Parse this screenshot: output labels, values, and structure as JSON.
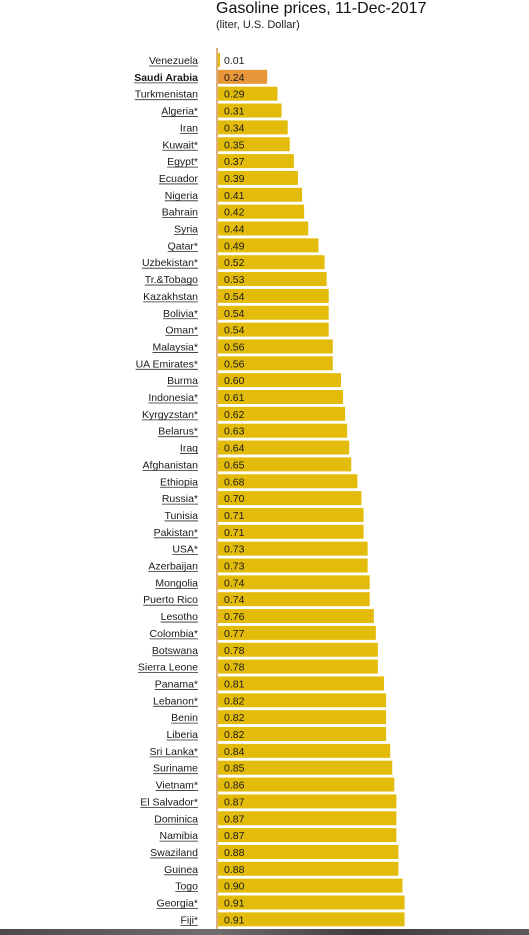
{
  "header": {
    "title": "Gasoline prices, 11-Dec-2017",
    "subtitle": "(liter, U.S. Dollar)"
  },
  "colors": {
    "bar": "#e3bc0b",
    "highlight": "#e8963a",
    "axis": "#c97a2a",
    "underline": "#2b2b2b"
  },
  "chart_data": {
    "type": "bar",
    "orientation": "horizontal",
    "title": "Gasoline prices, 11-Dec-2017",
    "subtitle": "(liter, U.S. Dollar)",
    "highlight": "Saudi Arabia",
    "categories": [
      "Venezuela",
      "Saudi Arabia",
      "Turkmenistan",
      "Algeria*",
      "Iran",
      "Kuwait*",
      "Egypt*",
      "Ecuador",
      "Nigeria",
      "Bahrain",
      "Syria",
      "Qatar*",
      "Uzbekistan*",
      "Tr.&Tobago",
      "Kazakhstan",
      "Bolivia*",
      "Oman*",
      "Malaysia*",
      "UA Emirates*",
      "Burma",
      "Indonesia*",
      "Kyrgyzstan*",
      "Belarus*",
      "Iraq",
      "Afghanistan",
      "Ethiopia",
      "Russia*",
      "Tunisia",
      "Pakistan*",
      "USA*",
      "Azerbaijan",
      "Mongolia",
      "Puerto Rico",
      "Lesotho",
      "Colombia*",
      "Botswana",
      "Sierra Leone",
      "Panama*",
      "Lebanon*",
      "Benin",
      "Liberia",
      "Sri Lanka*",
      "Suriname",
      "Vietnam*",
      "El Salvador*",
      "Dominica",
      "Namibia",
      "Swaziland",
      "Guinea",
      "Togo",
      "Georgia*",
      "Fiji*"
    ],
    "values": [
      0.01,
      0.24,
      0.29,
      0.31,
      0.34,
      0.35,
      0.37,
      0.39,
      0.41,
      0.42,
      0.44,
      0.49,
      0.52,
      0.53,
      0.54,
      0.54,
      0.54,
      0.56,
      0.56,
      0.6,
      0.61,
      0.62,
      0.63,
      0.64,
      0.65,
      0.68,
      0.7,
      0.71,
      0.71,
      0.73,
      0.73,
      0.74,
      0.74,
      0.76,
      0.77,
      0.78,
      0.78,
      0.81,
      0.82,
      0.82,
      0.82,
      0.84,
      0.85,
      0.86,
      0.87,
      0.87,
      0.87,
      0.88,
      0.88,
      0.9,
      0.91,
      0.91
    ],
    "value_labels": [
      "0.01",
      "0.24",
      "0.29",
      "0.31",
      "0.34",
      "0.35",
      "0.37",
      "0.39",
      "0.41",
      "0.42",
      "0.44",
      "0.49",
      "0.52",
      "0.53",
      "0.54",
      "0.54",
      "0.54",
      "0.56",
      "0.56",
      "0.60",
      "0.61",
      "0.62",
      "0.63",
      "0.64",
      "0.65",
      "0.68",
      "0.70",
      "0.71",
      "0.71",
      "0.73",
      "0.73",
      "0.74",
      "0.74",
      "0.76",
      "0.77",
      "0.78",
      "0.78",
      "0.81",
      "0.82",
      "0.82",
      "0.82",
      "0.84",
      "0.85",
      "0.86",
      "0.87",
      "0.87",
      "0.87",
      "0.88",
      "0.88",
      "0.90",
      "0.91",
      "0.91"
    ]
  }
}
